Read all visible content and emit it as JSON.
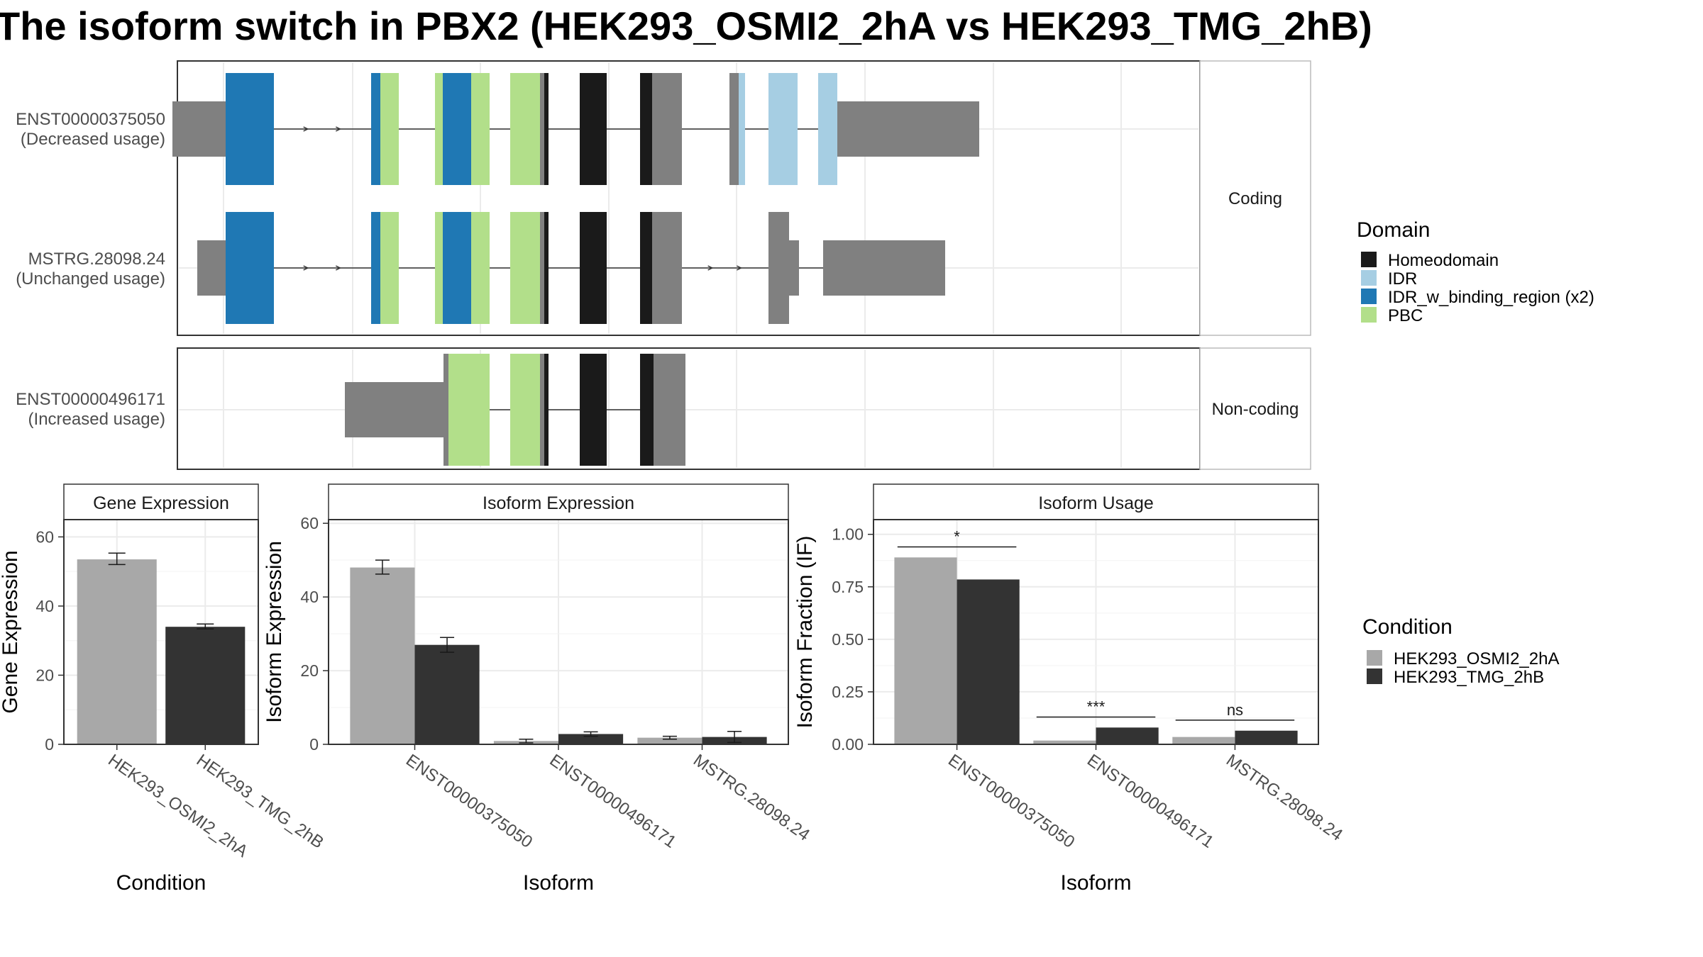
{
  "title": "The isoform switch in PBX2 (HEK293_OSMI2_2hA vs HEK293_TMG_2hB)",
  "structure": {
    "panels": [
      {
        "label": "Coding",
        "transcripts": [
          {
            "id": "ENST00000375050",
            "usage": "(Decreased usage)",
            "span": [
              243,
              1380
            ],
            "utrs": [
              [
                243,
                318
              ],
              [
                1162,
                1380
              ]
            ],
            "cds": [
              [
                318,
                1162
              ]
            ],
            "domains": [
              {
                "start": 318,
                "end": 386,
                "domain": "IDR_w_binding_region (x2)"
              },
              {
                "start": 523,
                "end": 536,
                "domain": "IDR_w_binding_region (x2)"
              },
              {
                "start": 536,
                "end": 562,
                "domain": "PBC"
              },
              {
                "start": 613,
                "end": 624,
                "domain": "PBC"
              },
              {
                "start": 624,
                "end": 664,
                "domain": "IDR_w_binding_region (x2)"
              },
              {
                "start": 664,
                "end": 690,
                "domain": "PBC"
              },
              {
                "start": 719,
                "end": 761,
                "domain": "PBC"
              },
              {
                "start": 767,
                "end": 773,
                "domain": "Homeodomain"
              },
              {
                "start": 817,
                "end": 855,
                "domain": "Homeodomain"
              },
              {
                "start": 902,
                "end": 919,
                "domain": "Homeodomain"
              },
              {
                "start": 1041,
                "end": 1050,
                "domain": "IDR"
              },
              {
                "start": 1083,
                "end": 1124,
                "domain": "IDR"
              },
              {
                "start": 1153,
                "end": 1180,
                "domain": "IDR"
              }
            ]
          },
          {
            "id": "MSTRG.28098.24",
            "usage": "(Unchanged usage)",
            "span": [
              278,
              1332
            ],
            "utrs": [
              [
                278,
                318
              ],
              [
                1112,
                1126
              ],
              [
                1160,
                1332
              ]
            ],
            "cds": [
              [
                318,
                1112
              ]
            ],
            "domains": [
              {
                "start": 318,
                "end": 386,
                "domain": "IDR_w_binding_region (x2)"
              },
              {
                "start": 523,
                "end": 536,
                "domain": "IDR_w_binding_region (x2)"
              },
              {
                "start": 536,
                "end": 562,
                "domain": "PBC"
              },
              {
                "start": 613,
                "end": 624,
                "domain": "PBC"
              },
              {
                "start": 624,
                "end": 664,
                "domain": "IDR_w_binding_region (x2)"
              },
              {
                "start": 664,
                "end": 690,
                "domain": "PBC"
              },
              {
                "start": 719,
                "end": 761,
                "domain": "PBC"
              },
              {
                "start": 767,
                "end": 773,
                "domain": "Homeodomain"
              },
              {
                "start": 817,
                "end": 855,
                "domain": "Homeodomain"
              },
              {
                "start": 902,
                "end": 919,
                "domain": "Homeodomain"
              }
            ]
          }
        ]
      },
      {
        "label": "Non-coding",
        "transcripts": [
          {
            "id": "ENST00000496171",
            "usage": "(Increased usage)",
            "span": [
              486,
              966
            ],
            "utrs": [
              [
                486,
                625
              ]
            ],
            "cds": [
              [
                625,
                966
              ]
            ],
            "domains": [
              {
                "start": 632,
                "end": 690,
                "domain": "PBC"
              },
              {
                "start": 719,
                "end": 761,
                "domain": "PBC"
              },
              {
                "start": 767,
                "end": 773,
                "domain": "Homeodomain"
              },
              {
                "start": 817,
                "end": 855,
                "domain": "Homeodomain"
              },
              {
                "start": 902,
                "end": 921,
                "domain": "Homeodomain"
              }
            ]
          }
        ]
      }
    ],
    "exons_by_transcript": {
      "ENST00000375050": [
        [
          243,
          386
        ],
        [
          523,
          562
        ],
        [
          613,
          690
        ],
        [
          719,
          773
        ],
        [
          817,
          855
        ],
        [
          902,
          961
        ],
        [
          1028,
          1050
        ],
        [
          1083,
          1124
        ],
        [
          1153,
          1380
        ]
      ],
      "MSTRG.28098.24": [
        [
          278,
          386
        ],
        [
          523,
          562
        ],
        [
          613,
          690
        ],
        [
          719,
          773
        ],
        [
          817,
          855
        ],
        [
          902,
          961
        ],
        [
          1083,
          1126
        ],
        [
          1160,
          1332
        ]
      ],
      "ENST00000496171": [
        [
          486,
          690
        ],
        [
          719,
          773
        ],
        [
          817,
          855
        ],
        [
          902,
          966
        ]
      ]
    }
  },
  "domain_legend": {
    "title": "Domain",
    "items": [
      {
        "name": "Homeodomain",
        "color": "#1a1a1a"
      },
      {
        "name": "IDR",
        "color": "#a6cee3"
      },
      {
        "name": "IDR_w_binding_region (x2)",
        "color": "#1f78b4"
      },
      {
        "name": "PBC",
        "color": "#b2df8a"
      }
    ]
  },
  "condition_legend": {
    "title": "Condition",
    "items": [
      {
        "name": "HEK293_OSMI2_2hA",
        "color": "#a8a8a8"
      },
      {
        "name": "HEK293_TMG_2hB",
        "color": "#333333"
      }
    ]
  },
  "chart_data": [
    {
      "type": "bar",
      "title": "Gene Expression",
      "xlabel": "Condition",
      "ylabel": "Gene Expression",
      "categories": [
        "HEK293_OSMI2_2hA",
        "HEK293_TMG_2hB"
      ],
      "values": [
        53.5,
        34
      ],
      "error": [
        [
          52,
          55.3
        ],
        [
          33.4,
          34.8
        ]
      ],
      "ylim": [
        0,
        65
      ],
      "yticks": [
        0,
        20,
        40,
        60
      ]
    },
    {
      "type": "bar",
      "title": "Isoform Expression",
      "xlabel": "Isoform",
      "ylabel": "Isoform Expression",
      "categories": [
        "ENST00000375050",
        "ENST00000496171",
        "MSTRG.28098.24"
      ],
      "series": [
        {
          "name": "HEK293_OSMI2_2hA",
          "values": [
            48,
            0.9,
            1.8
          ],
          "error": [
            [
              46.2,
              50
            ],
            [
              0.4,
              1.4
            ],
            [
              1.4,
              2.2
            ]
          ]
        },
        {
          "name": "HEK293_TMG_2hB",
          "values": [
            27,
            2.8,
            2
          ],
          "error": [
            [
              25,
              29
            ],
            [
              2.2,
              3.4
            ],
            [
              0.5,
              3.5
            ]
          ]
        }
      ],
      "ylim": [
        0,
        61
      ],
      "yticks": [
        0,
        20,
        40,
        60
      ]
    },
    {
      "type": "bar",
      "title": "Isoform Usage",
      "xlabel": "Isoform",
      "ylabel": "Isoform Fraction (IF)",
      "categories": [
        "ENST00000375050",
        "ENST00000496171",
        "MSTRG.28098.24"
      ],
      "series": [
        {
          "name": "HEK293_OSMI2_2hA",
          "values": [
            0.89,
            0.018,
            0.035
          ]
        },
        {
          "name": "HEK293_TMG_2hB",
          "values": [
            0.785,
            0.08,
            0.065
          ]
        }
      ],
      "significance": [
        "*",
        "***",
        "ns"
      ],
      "ylim": [
        0,
        1.07
      ],
      "yticks": [
        0,
        0.25,
        0.5,
        0.75,
        1.0
      ],
      "ytick_labels": [
        "0.00",
        "0.25",
        "0.50",
        "0.75",
        "1.00"
      ]
    }
  ]
}
